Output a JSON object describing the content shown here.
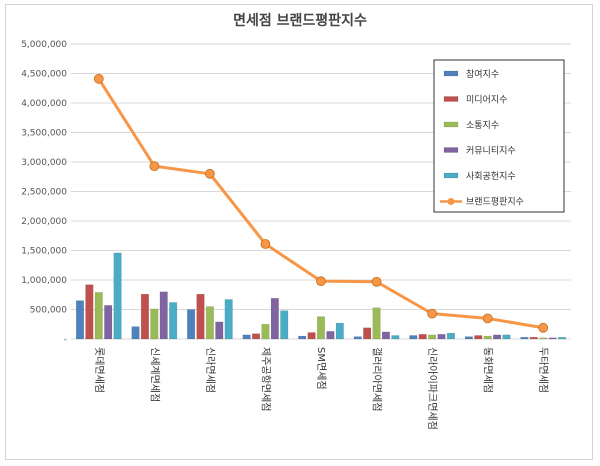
{
  "chart_data": {
    "type": "bar",
    "title": "면세점 브랜드평판지수",
    "categories": [
      "롯데면세점",
      "신세계면세점",
      "신라면세점",
      "제주공항면세점",
      "SM면세점",
      "갤러리아면세점",
      "신라아이파크면세점",
      "동화면세점",
      "두타면세점"
    ],
    "series": [
      {
        "name": "참여지수",
        "kind": "bar",
        "color": "#4f81bd",
        "values": [
          650000,
          210000,
          500000,
          70000,
          50000,
          40000,
          60000,
          40000,
          30000
        ]
      },
      {
        "name": "미디어지수",
        "kind": "bar",
        "color": "#c0504d",
        "values": [
          920000,
          760000,
          760000,
          90000,
          110000,
          190000,
          80000,
          60000,
          30000
        ]
      },
      {
        "name": "소통지수",
        "kind": "bar",
        "color": "#9bbb59",
        "values": [
          790000,
          510000,
          550000,
          250000,
          380000,
          530000,
          70000,
          50000,
          20000
        ]
      },
      {
        "name": "커뮤니티지수",
        "kind": "bar",
        "color": "#8064a2",
        "values": [
          570000,
          800000,
          290000,
          690000,
          130000,
          120000,
          80000,
          70000,
          20000
        ]
      },
      {
        "name": "사회공헌지수",
        "kind": "bar",
        "color": "#4bacc6",
        "values": [
          1460000,
          620000,
          670000,
          480000,
          270000,
          60000,
          100000,
          70000,
          30000
        ]
      },
      {
        "name": "브랜드평판지수",
        "kind": "line",
        "color": "#f79646",
        "values": [
          4410000,
          2930000,
          2800000,
          1610000,
          980000,
          970000,
          430000,
          350000,
          190000
        ]
      }
    ],
    "ylim": [
      0,
      5000000
    ],
    "yticks": [
      "-",
      "500,000",
      "1,000,000",
      "1,500,000",
      "2,000,000",
      "2,500,000",
      "3,000,000",
      "3,500,000",
      "4,000,000",
      "4,500,000",
      "5,000,000"
    ],
    "grid": true,
    "legend_position": "right"
  }
}
